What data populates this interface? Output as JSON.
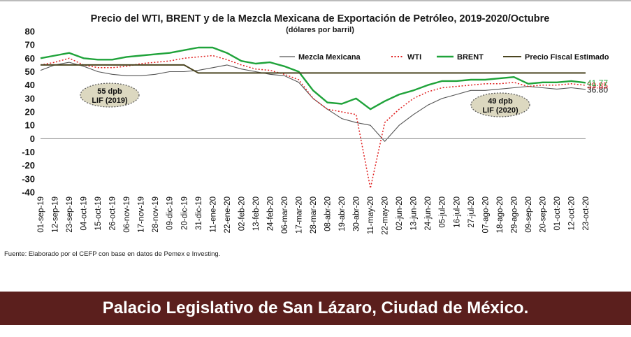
{
  "chart_data": {
    "type": "line",
    "title": "Precio del WTI, BRENT y de la Mezcla Mexicana de Exportación de Petróleo, 2019-2020/Octubre",
    "subtitle": "(dólares por barril)",
    "ylim": [
      -40,
      80
    ],
    "yticks": [
      80,
      70,
      60,
      50,
      40,
      30,
      20,
      10,
      0,
      -10,
      -20,
      -30,
      -40
    ],
    "x_tick_labels": [
      "01-sep-19",
      "12-sep-19",
      "23-sep-19",
      "04-oct-19",
      "15-oct-19",
      "26-oct-19",
      "06-nov-19",
      "17-nov-19",
      "28-nov-19",
      "09-dic-19",
      "20-dic-19",
      "31-dic-19",
      "11-ene-20",
      "22-ene-20",
      "02-feb-20",
      "13-feb-20",
      "24-feb-20",
      "06-mar-20",
      "17-mar-20",
      "28-mar-20",
      "08-abr-20",
      "19-abr-20",
      "30-abr-20",
      "11-may-20",
      "22-may-20",
      "02-jun-20",
      "13-jun-20",
      "24-jun-20",
      "05-jul-20",
      "16-jul-20",
      "27-jul-20",
      "07-ago-20",
      "18-ago-20",
      "29-ago-20",
      "09-sep-20",
      "20-sep-20",
      "01-oct-20",
      "12-oct-20",
      "23-oct-20"
    ],
    "legend_position": "top-right",
    "series": [
      {
        "name": "Mezcla Mexicana",
        "color": "#555555",
        "style": "solid",
        "end_label": "36.80",
        "values": [
          51,
          55,
          57,
          54,
          50,
          48,
          47,
          47,
          48,
          50,
          50,
          51,
          53,
          55,
          52,
          50,
          48,
          47,
          42,
          30,
          22,
          15,
          12,
          10,
          -2,
          10,
          18,
          25,
          30,
          33,
          36,
          36,
          37,
          38,
          39,
          38,
          37,
          38,
          36.8
        ]
      },
      {
        "name": "WTI",
        "color": "#e02020",
        "style": "dotted",
        "end_label": "39.85",
        "values": [
          55,
          57,
          60,
          55,
          53,
          53,
          54,
          56,
          57,
          58,
          60,
          61,
          62,
          59,
          55,
          52,
          51,
          48,
          44,
          30,
          22,
          20,
          18,
          -37,
          12,
          22,
          30,
          35,
          38,
          39,
          40,
          41,
          41,
          42,
          39,
          40,
          40,
          41,
          39.85
        ]
      },
      {
        "name": "BRENT",
        "color": "#1fa33a",
        "style": "solid",
        "end_label": "41.77",
        "values": [
          60,
          62,
          64,
          60,
          59,
          59,
          61,
          62,
          63,
          64,
          66,
          68,
          68,
          64,
          58,
          56,
          57,
          54,
          50,
          36,
          27,
          26,
          30,
          22,
          28,
          33,
          36,
          40,
          43,
          43,
          44,
          44,
          45,
          46,
          41,
          42,
          42,
          43,
          41.77
        ]
      },
      {
        "name": "Precio Fiscal Estimado",
        "color": "#4b4520",
        "style": "solid",
        "values": [
          55,
          55,
          55,
          55,
          55,
          55,
          55,
          55,
          55,
          55,
          55,
          49,
          49,
          49,
          49,
          49,
          49,
          49,
          49,
          49,
          49,
          49,
          49,
          49,
          49,
          49,
          49,
          49,
          49,
          49,
          49,
          49,
          49,
          49,
          49,
          49,
          49,
          49,
          49
        ]
      }
    ],
    "annotations": [
      {
        "line1": "55 dpb",
        "line2": "LIF (2019)"
      },
      {
        "line1": "49 dpb",
        "line2": "LIF (2020)"
      }
    ]
  },
  "source": "Fuente: Elaborado por el CEFP con base en datos de Pemex e Investing.",
  "footer": "Palacio Legislativo de San Lázaro, Ciudad de México.",
  "colors": {
    "footer_band": "#5b1f1d",
    "callout_fill": "#dcd8c0"
  }
}
